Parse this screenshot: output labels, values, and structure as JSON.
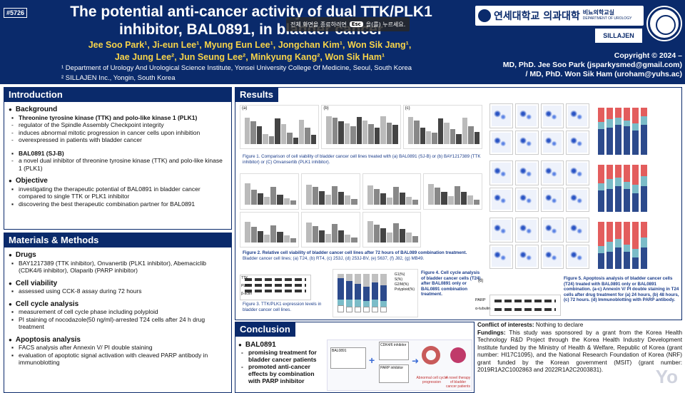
{
  "header": {
    "poster_id": "#5726",
    "title": "The potential anti-cancer activity of dual TTK/PLK1 inhibitor, BAL0891, in bladder cancer",
    "authors_line1": "Jee Soo Park¹, Ji-eun Lee¹, Myung Eun Lee¹, Jongchan Kim¹, Won Sik Jang¹,",
    "authors_line2": "Jae Jung Lee², Jun Seung Lee², Minkyung Kang², Won Sik Ham¹",
    "affiliation1": "¹ Department of Urology And Urological Science Institute, Yonsei University College Of Medicine, Seoul, South Korea",
    "affiliation2": "² SILLAJEN Inc., Yongin, South Korea",
    "copyright_line1": "Copyright © 2024 –",
    "copyright_line2": "MD, PhD. Jee Soo Park (jsparkysmed@gmail.com)",
    "copyright_line3": "/ MD, PhD. Won Sik Ham (uroham@yuhs.ac)",
    "logo_korean": "연세대학교 의과대학",
    "logo_dept_kr": "비뇨의학교실",
    "logo_dept_en": "DEPARTMENT OF UROLOGY",
    "sillajen": "SILLAJEN"
  },
  "toast": {
    "pre": "전체 화면을 종료하려면",
    "key": "Esc",
    "post": "을(를) 누르세요."
  },
  "intro": {
    "heading": "Introduction",
    "background": "Background",
    "ttk_title": "Threonine tyrosine kinase (TTK) and polo-like kinase 1 (PLK1)",
    "ttk_points": [
      "regulator of  the Spindle Assembly Checkpoint integrity",
      "induces abnormal mitotic progression in cancer cells upon inhibition",
      "overexpressed in patients with bladder cancer"
    ],
    "bal_title": "BAL0891 (SJ-B)",
    "bal_point": "a novel dual inhibitor of threonine tyrosine kinase (TTK) and polo-like kinase 1 (PLK1)",
    "objective": "Objective",
    "objective_points": [
      "investigating the therapeutic potential of BAL0891 in bladder cancer compared to single TTK or PLK1 inhibitor",
      "discovering the best therapeutic combination partner for BAL0891"
    ]
  },
  "methods": {
    "heading": "Materials & Methods",
    "drugs": "Drugs",
    "drugs_point": "BAY1217389 (TTK inhibitor), Onvanertib (PLK1 inhibitor), Abemaciclib (CDK4/6 inhibitor), Olaparib (PARP inhibitor)",
    "viability": "Cell viability",
    "viability_point": "assessed using CCK-8 assay during 72 hours",
    "cycle": "Cell cycle analysis",
    "cycle_points": [
      "measurement of cell cycle phase including polyploid",
      "PI staining of nocodazole(50 ng/ml)-arrested T24 cells after 24 h drug treatment"
    ],
    "apoptosis": "Apoptosis analysis",
    "apoptosis_points": [
      "FACS analysis after Annexin V/ PI double staining",
      "evaluation of apoptotic signal activation with cleaved PARP antibody in immunoblotting"
    ]
  },
  "results": {
    "heading": "Results",
    "fig1_caption": "Figure 1. Comparison of cell viability of bladder cancer cell lines treated with (a) BAL0891 (SJ-B) or (b) BAY1217389 (TTK inhibitor) or (C) Onvansertib (PLK1 inhibitor).",
    "fig2_caption_bold": "Figure 2. Relative cell viability of bladder cancer cell lines after 72 hours of BAL089 combination treatment.",
    "fig2_caption": "Bladder cancer cell lines; (a) T24, (b) RT4, (c) 253J, (d) 253J-BV, (e) 5637, (f) J82, (g) MB49.",
    "fig3_caption": "Figure 3. TTK/PLK1 expression levels in bladder cancer cell lines.",
    "fig4_caption": "Figure 4. Cell cycle analysis of bladder cancer cells (T24) after BAL0891 only or BAL0891 combination treatment.",
    "fig5_caption": "Figure 5. Apoptosis analysis of bladder cancer cells (T24) treated with BAL0891 only or BAL0891 combination. (a-c) Annexin V/ PI double staining in T24 cells after drug treatment for (a) 24 hours, (b) 48 hours, (c) 72 hours. (d) Immunoblotting with PARP antibody.",
    "blot_labels": [
      "TTK",
      "PLK1",
      "β-actin"
    ],
    "blot5_labels": [
      "PARP",
      "α-tubulin"
    ],
    "panel_a": "(a)",
    "panel_b": "(b)",
    "panel_c": "(c)",
    "panel_d": "(d)",
    "legend4": [
      "G1(%)",
      "S(%)",
      "G2/M(%)",
      "Polyploid(%)"
    ]
  },
  "conclusion": {
    "heading": "Conclusion",
    "title": "BAL0891",
    "points": [
      "promising treatment for bladder cancer patients",
      "promoted anti-cancer effects by combination with PARP inhibitor"
    ],
    "fig_labels": [
      "BAL0891",
      "CDK4/6 inhibitor",
      "PARP inhibitor",
      "Abnormal cell cycle progression",
      "A novel therapy of bladder cancer patients"
    ]
  },
  "funding": {
    "coi_label": "Conflict of interests:",
    "coi": "Nothing to declare",
    "fund_label": "Fundings:",
    "fund": "This study was sponsored by a grant from the Korea Health Technology R&D Project through the Korea Health Industry Development Institute funded by the Ministry of Health & Welfare, Republic of Korea (grant number: HI17C1095), and the National Research Foundation of Korea (NRF) grant funded by the Korean government (MSIT) (grant number: 2019R1A2C1002863 and 2022R1A2C2003831)."
  },
  "colors": {
    "navy": "#0a2a6b",
    "gold": "#f6d34a",
    "caption_blue": "#1a3c8a"
  }
}
